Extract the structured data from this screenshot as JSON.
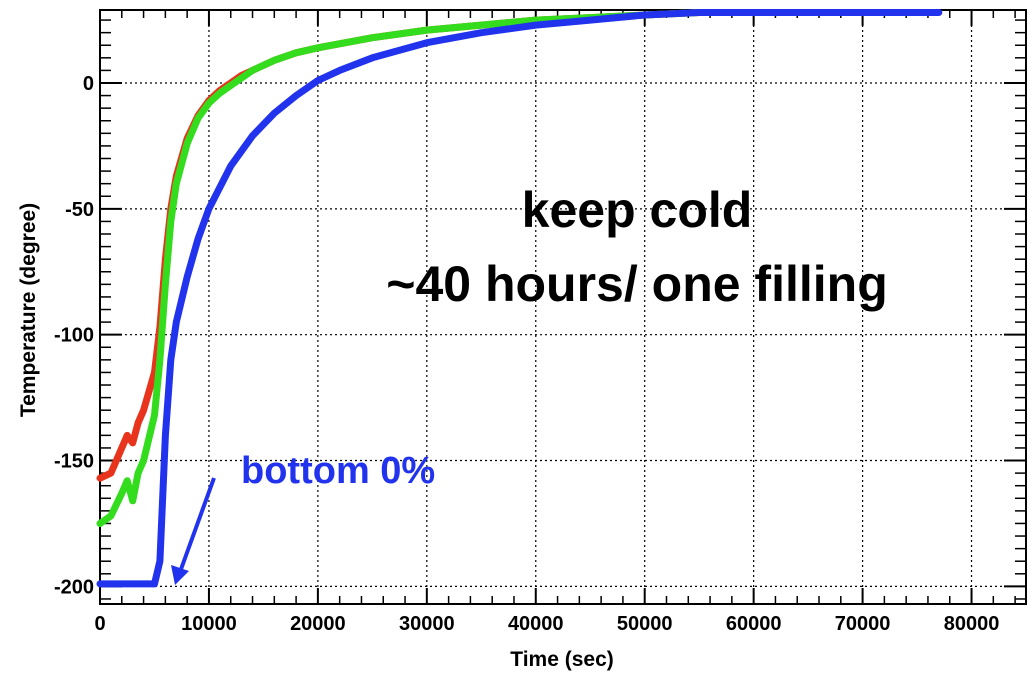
{
  "chart_data": {
    "type": "line",
    "title": "",
    "xlabel": "Time (sec)",
    "ylabel": "Temperature (degree)",
    "xlim": [
      0,
      85000
    ],
    "ylim": [
      -207,
      29
    ],
    "xticks": [
      0,
      10000,
      20000,
      30000,
      40000,
      50000,
      60000,
      70000,
      80000
    ],
    "yticks": [
      -200,
      -150,
      -100,
      -50,
      0
    ],
    "grid": true,
    "legend": "none",
    "series": [
      {
        "color": "#e8341c",
        "x": [
          0,
          1000,
          2000,
          2500,
          3000,
          3500,
          4000,
          5000,
          5500,
          6000,
          6500,
          7000,
          8000,
          9000,
          10000,
          11000,
          12000,
          13000,
          14000,
          16000,
          18000,
          20000,
          25000,
          30000,
          35000,
          40000,
          45000,
          50000,
          55000,
          60000
        ],
        "y": [
          -157,
          -155,
          -145,
          -140,
          -143,
          -135,
          -130,
          -115,
          -97,
          -70,
          -50,
          -37,
          -22,
          -13,
          -7,
          -3,
          0,
          3,
          5,
          9,
          12,
          14,
          18,
          21,
          23,
          25,
          26,
          27,
          28,
          28
        ]
      },
      {
        "color": "#33dd1e",
        "x": [
          0,
          1000,
          2000,
          2500,
          3000,
          3500,
          4000,
          5000,
          5500,
          6000,
          6500,
          7000,
          8000,
          9000,
          10000,
          11000,
          12000,
          13000,
          14000,
          16000,
          18000,
          20000,
          25000,
          30000,
          35000,
          40000,
          45000,
          50000,
          55000,
          60000
        ],
        "y": [
          -175,
          -172,
          -163,
          -158,
          -166,
          -155,
          -150,
          -132,
          -110,
          -80,
          -55,
          -40,
          -24,
          -14,
          -8,
          -4,
          -1,
          2,
          5,
          9,
          12,
          14,
          18,
          21,
          23,
          25,
          26,
          27,
          28,
          28
        ]
      },
      {
        "color": "#2233ee",
        "x": [
          0,
          1000,
          2000,
          3000,
          4000,
          5000,
          5500,
          6000,
          6500,
          7000,
          8000,
          9000,
          10000,
          12000,
          14000,
          16000,
          18000,
          20000,
          22000,
          25000,
          30000,
          35000,
          40000,
          45000,
          50000,
          55000,
          60000,
          65000,
          70000,
          75000,
          77000
        ],
        "y": [
          -199,
          -199,
          -199,
          -199,
          -199,
          -199,
          -190,
          -140,
          -110,
          -95,
          -77,
          -62,
          -50,
          -33,
          -21,
          -12,
          -5,
          1,
          5,
          10,
          16,
          20,
          23,
          25,
          27,
          28,
          28,
          28,
          28,
          28,
          28
        ]
      }
    ],
    "annotations": [
      {
        "text": "keep cold",
        "color": "#000000"
      },
      {
        "text": "~40 hours/ one filling",
        "color": "#000000"
      },
      {
        "text": "bottom 0%",
        "color": "#2233ee"
      }
    ]
  }
}
